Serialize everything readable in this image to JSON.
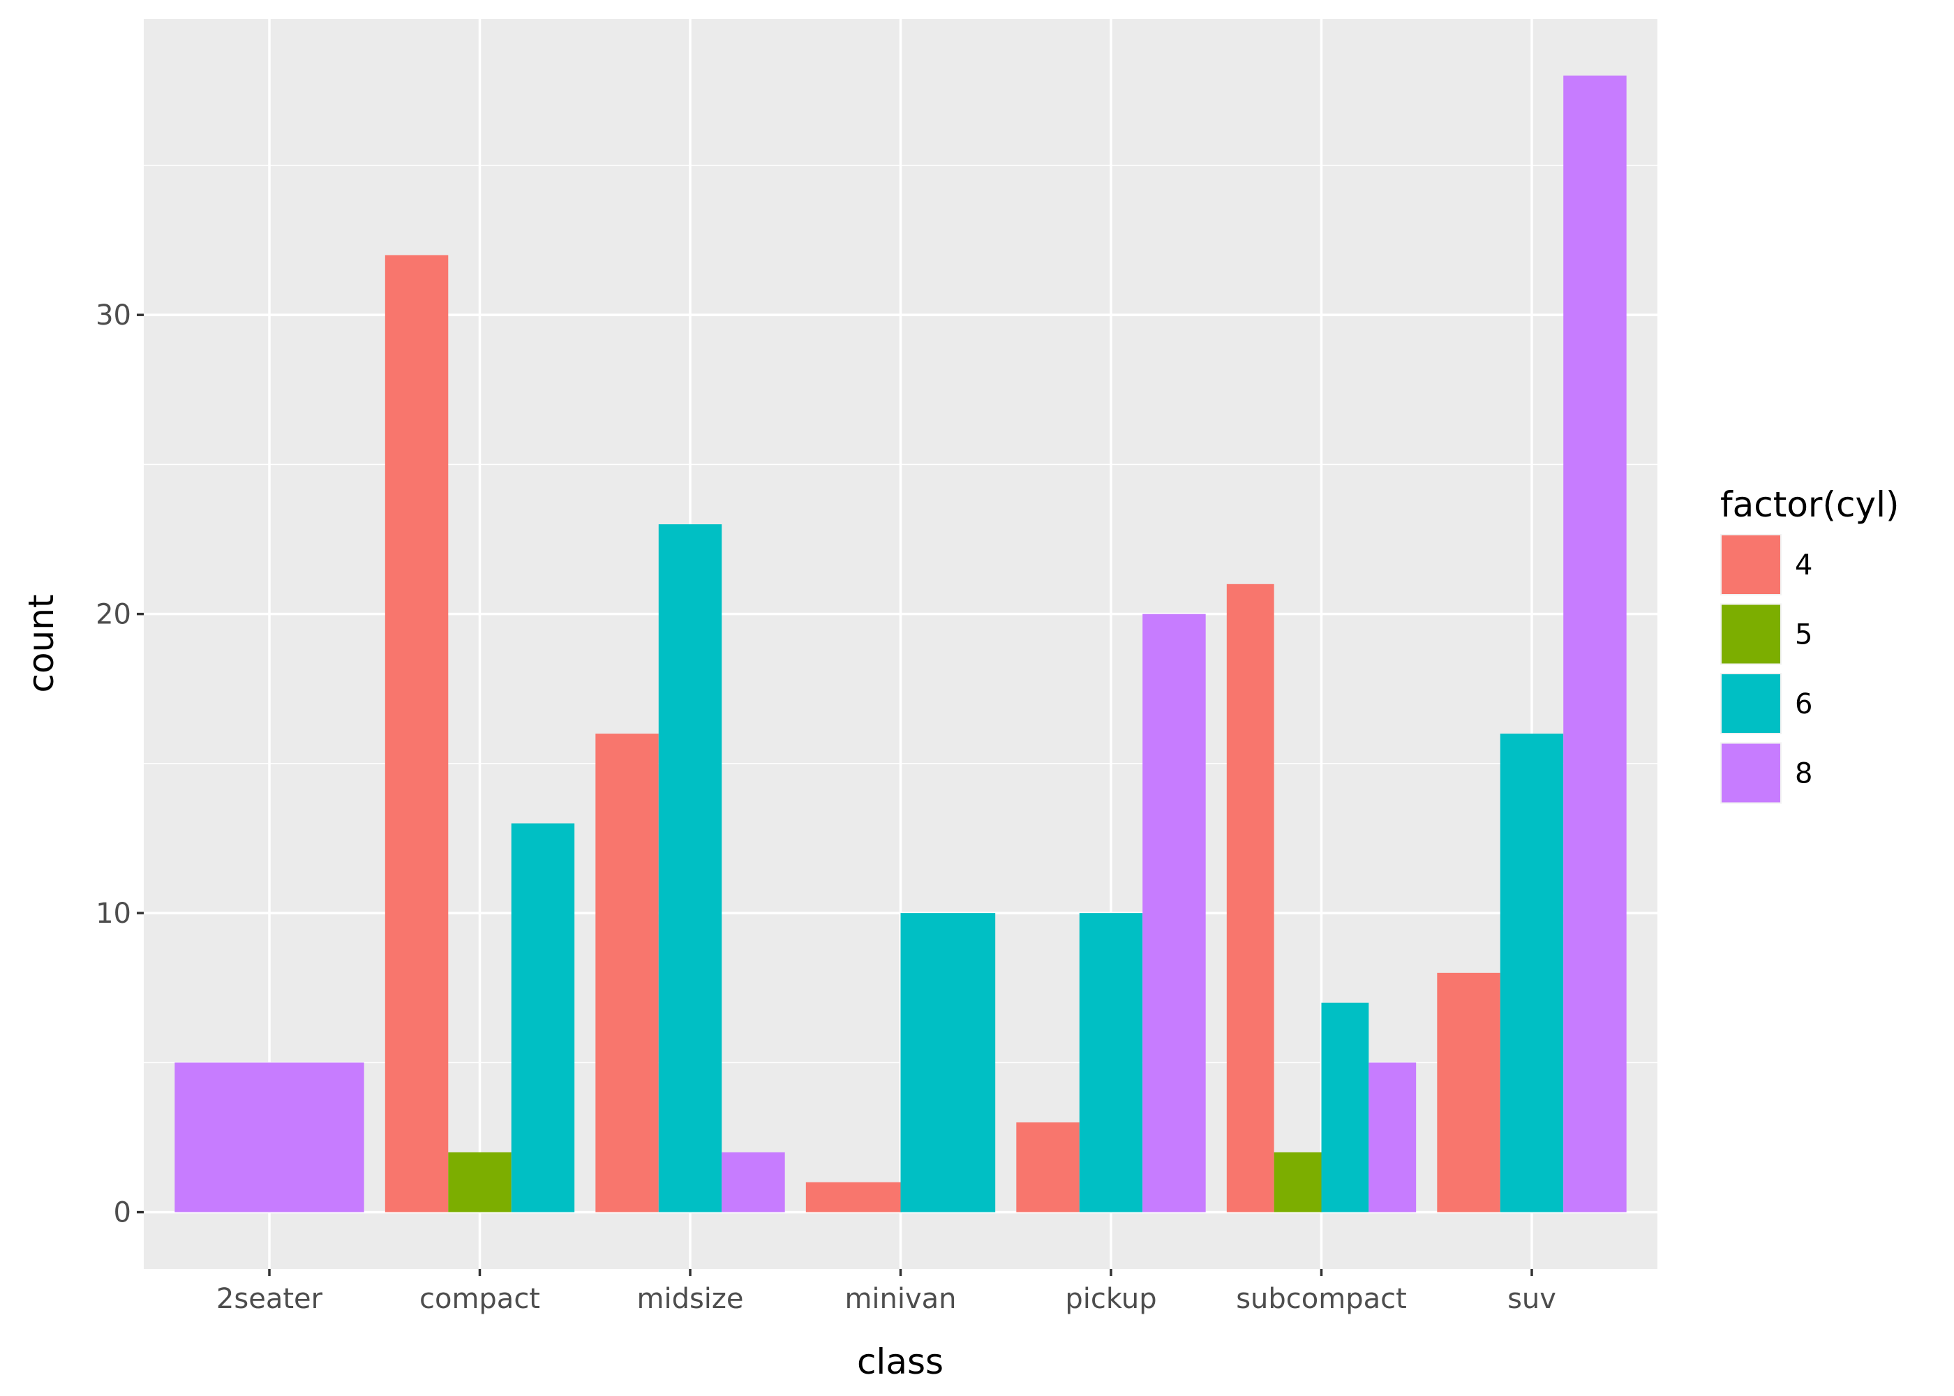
{
  "chart_data": {
    "type": "bar",
    "position": "dodge",
    "title": "",
    "xlabel": "class",
    "ylabel": "count",
    "ylim": [
      -1.9,
      39.9
    ],
    "yticks": [
      0,
      10,
      20,
      30
    ],
    "grid": true,
    "categories": [
      "2seater",
      "compact",
      "midsize",
      "minivan",
      "pickup",
      "subcompact",
      "suv"
    ],
    "legend": {
      "title": "factor(cyl)",
      "placement": "right",
      "entries": [
        {
          "label": "4",
          "color": "#F8766D"
        },
        {
          "label": "5",
          "color": "#7CAE00"
        },
        {
          "label": "6",
          "color": "#00BFC4"
        },
        {
          "label": "8",
          "color": "#C77CFF"
        }
      ]
    },
    "series": [
      {
        "name": "4",
        "values": [
          null,
          32,
          16,
          1,
          3,
          21,
          8
        ]
      },
      {
        "name": "5",
        "values": [
          null,
          2,
          null,
          null,
          null,
          2,
          null
        ]
      },
      {
        "name": "6",
        "values": [
          null,
          13,
          23,
          10,
          10,
          7,
          16
        ]
      },
      {
        "name": "8",
        "values": [
          5,
          null,
          2,
          null,
          20,
          5,
          38
        ]
      }
    ]
  },
  "colors": {
    "panel": "#EBEBEB",
    "grid": "#FFFFFF"
  }
}
